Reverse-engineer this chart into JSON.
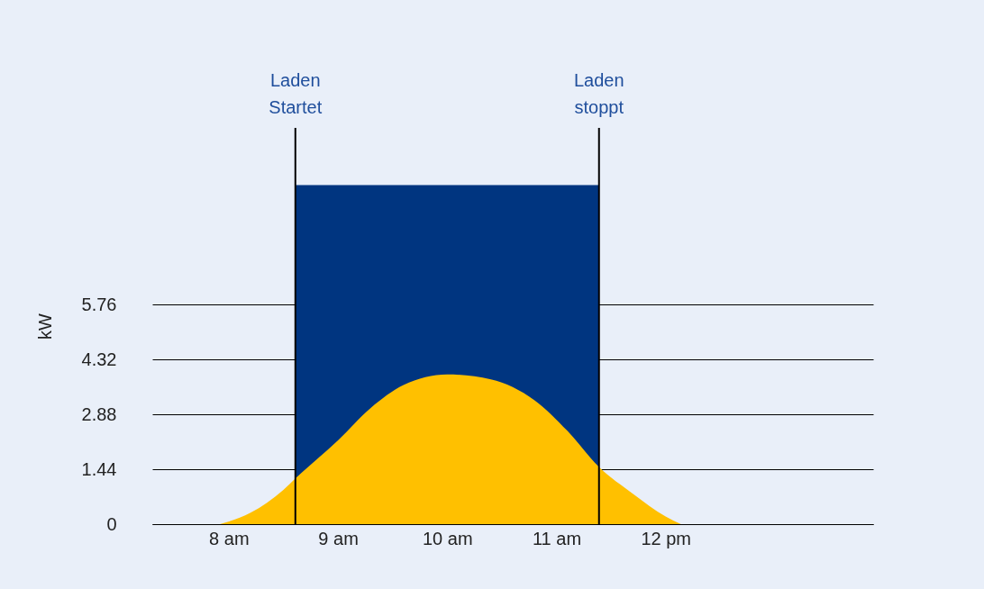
{
  "chart_data": {
    "type": "area",
    "ylabel": "kW",
    "xlim": [
      7.3,
      13.9
    ],
    "ylim": [
      0,
      10.4
    ],
    "xticks": [
      {
        "value": 8,
        "label": "8 am"
      },
      {
        "value": 9,
        "label": "9 am"
      },
      {
        "value": 10,
        "label": "10 am"
      },
      {
        "value": 11,
        "label": "11 am"
      },
      {
        "value": 12,
        "label": "12 pm"
      }
    ],
    "yticks": [
      0,
      1.44,
      2.88,
      4.32,
      5.76
    ],
    "grid": "y",
    "series": [
      {
        "color": "#003580",
        "x": [
          8.61,
          8.61,
          11.39,
          11.39
        ],
        "values": [
          0,
          8.9,
          8.9,
          0
        ]
      },
      {
        "color": "#ffc000",
        "x": [
          7.92,
          8.2,
          8.5,
          8.61,
          9,
          9.3,
          9.6,
          10,
          10.4,
          10.8,
          11.1,
          11.39,
          11.7,
          12,
          12.14
        ],
        "values": [
          0,
          0.3,
          0.9,
          1.2,
          2.2,
          3.05,
          3.65,
          3.93,
          3.8,
          3.25,
          2.45,
          1.5,
          0.8,
          0.2,
          0
        ]
      }
    ],
    "ref_lines": [
      {
        "axis": "x",
        "value": 8.61,
        "label": "Laden Startet"
      },
      {
        "axis": "x",
        "value": 11.39,
        "label": "Laden stoppt"
      }
    ]
  }
}
